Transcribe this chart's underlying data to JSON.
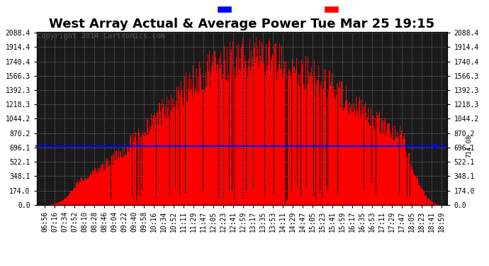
{
  "title": "West Array Actual & Average Power Tue Mar 25 19:15",
  "copyright": "Copyright 2014 Cartronics.com",
  "y_ticks": [
    0.0,
    174.0,
    348.1,
    522.1,
    696.1,
    870.2,
    1044.2,
    1218.3,
    1392.3,
    1566.3,
    1740.4,
    1914.4,
    2088.4
  ],
  "average_line": 714.08,
  "average_label": "714.08",
  "ymax": 2088.4,
  "ymin": 0.0,
  "bg_color": "#ffffff",
  "plot_bg_color": "#1a1a1a",
  "grid_color": "#888888",
  "bar_color": "#ff0000",
  "avg_line_color": "#0000ff",
  "legend_avg_bg": "#0000ff",
  "legend_west_bg": "#ff0000",
  "title_fontsize": 13,
  "copyright_fontsize": 7.5,
  "tick_label_fontsize": 7,
  "x_labels": [
    "06:56",
    "07:16",
    "07:34",
    "07:52",
    "08:10",
    "08:28",
    "08:46",
    "09:04",
    "09:22",
    "09:40",
    "09:58",
    "10:16",
    "10:34",
    "10:52",
    "11:11",
    "11:29",
    "11:47",
    "12:05",
    "12:23",
    "12:41",
    "12:59",
    "13:17",
    "13:35",
    "13:53",
    "14:11",
    "14:29",
    "14:47",
    "15:05",
    "15:23",
    "15:41",
    "15:59",
    "16:17",
    "16:35",
    "16:53",
    "17:11",
    "17:29",
    "17:47",
    "18:05",
    "18:23",
    "18:41",
    "18:59"
  ]
}
